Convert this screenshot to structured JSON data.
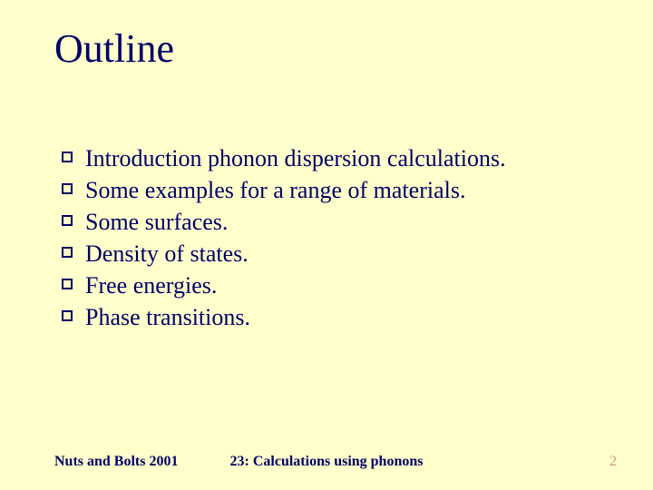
{
  "colors": {
    "background": "#ffffcc",
    "text": "#000066",
    "page_number": "#cc9966",
    "bullet_border": "#000066",
    "bullet_fill": "#ffffcc"
  },
  "typography": {
    "title_fontsize": 44,
    "body_fontsize": 26,
    "footer_fontsize": 16,
    "font_family": "Times New Roman"
  },
  "title": "Outline",
  "bullets": [
    "Introduction phonon dispersion calculations.",
    "Some examples for a range of materials.",
    "Some surfaces.",
    "Density of states.",
    "Free energies.",
    "Phase transitions."
  ],
  "footer": {
    "left": "Nuts and Bolts 2001",
    "center": "23: Calculations using phonons",
    "page_number": "2"
  }
}
